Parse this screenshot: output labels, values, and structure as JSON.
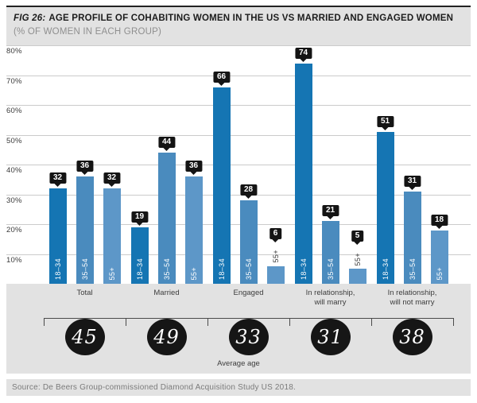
{
  "title": {
    "fig_label": "FIG 26:",
    "main": "AGE PROFILE OF COHABITING WOMEN IN THE US VS MARRIED AND ENGAGED WOMEN",
    "subtitle": "(% OF WOMEN IN EACH GROUP)"
  },
  "chart_data": {
    "type": "bar",
    "title": "FIG 26: AGE PROFILE OF COHABITING WOMEN IN THE US VS MARRIED AND ENGAGED WOMEN (% OF WOMEN IN EACH GROUP)",
    "xlabel": "",
    "ylabel": "% of women in each group",
    "ylim": [
      0,
      80
    ],
    "ytick_labels": [
      "10%",
      "20%",
      "30%",
      "40%",
      "50%",
      "60%",
      "70%",
      "80%"
    ],
    "grid": true,
    "legend_position": "none",
    "categories": [
      "Total",
      "Married",
      "Engaged",
      "In relationship,\nwill marry",
      "In relationship,\nwill not marry"
    ],
    "series": [
      {
        "name": "18–34",
        "color": "#1575b3",
        "values": [
          32,
          19,
          66,
          74,
          51
        ]
      },
      {
        "name": "35–54",
        "color": "#4a8bbe",
        "values": [
          36,
          44,
          28,
          21,
          31
        ]
      },
      {
        "name": "55+",
        "color": "#5d97c8",
        "values": [
          32,
          36,
          6,
          5,
          18
        ]
      }
    ],
    "average_age": {
      "label": "Average age",
      "values": [
        45,
        49,
        33,
        31,
        38
      ]
    }
  },
  "colors": {
    "band_background": "#e2e2e2",
    "gridline": "#cbcbcb",
    "value_badge": "#141414",
    "bar_dark_blue": "#1575b3",
    "bar_mid_blue": "#4a8bbe",
    "bar_light_blue": "#5d97c8"
  },
  "source": "Source: De Beers Group-commissioned Diamond Acquisition Study US 2018."
}
